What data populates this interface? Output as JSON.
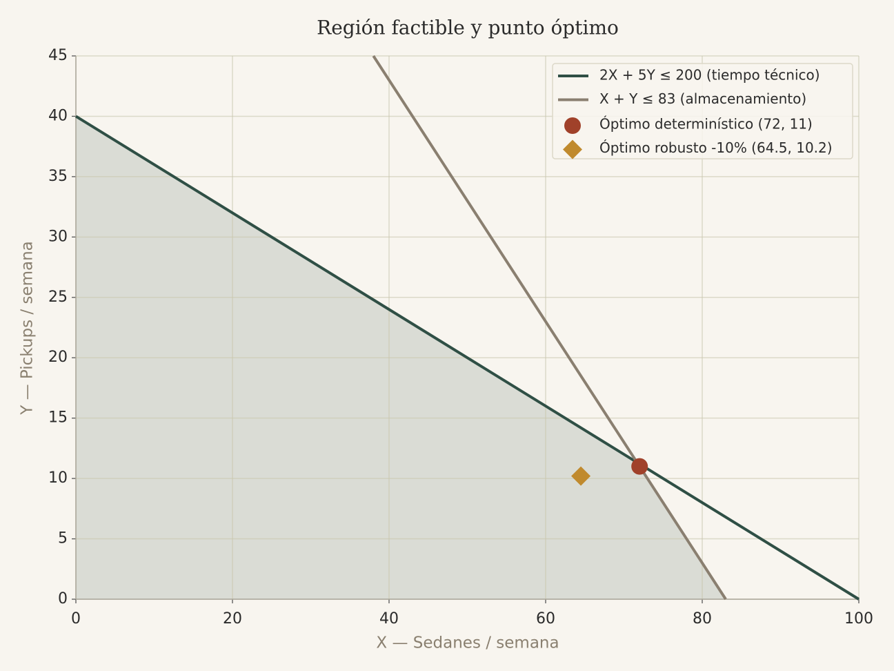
{
  "chart_data": {
    "type": "line",
    "title": "Región factible y punto óptimo",
    "xlabel": "X — Sedanes / semana",
    "ylabel": "Y — Pickups / semana",
    "xlim": [
      0,
      100
    ],
    "ylim": [
      0,
      45
    ],
    "xticks": [
      0,
      20,
      40,
      60,
      80,
      100
    ],
    "yticks": [
      0,
      5,
      10,
      15,
      20,
      25,
      30,
      35,
      40,
      45
    ],
    "grid": true,
    "legend": "upper right",
    "region": {
      "x": [
        0,
        0,
        71.67,
        83
      ],
      "y": [
        0,
        40,
        11.33,
        0
      ],
      "color": "#dadcd5"
    },
    "series": [
      {
        "name": "2X + 5Y ≤ 200 (tiempo técnico)",
        "color": "#2f4f45",
        "marker": "none",
        "x": [
          0,
          100
        ],
        "values": [
          40,
          0
        ]
      },
      {
        "name": "X + Y ≤ 83 (almacenamiento)",
        "color": "#8a7f70",
        "marker": "none",
        "x": [
          38,
          83
        ],
        "values": [
          45,
          0
        ]
      },
      {
        "name": "Óptimo determinístico (72, 11)",
        "color": "#a0412a",
        "marker": "circle",
        "x": [
          72
        ],
        "values": [
          11
        ]
      },
      {
        "name": "Óptimo robusto -10% (64.5, 10.2)",
        "color": "#c08a2e",
        "marker": "diamond",
        "x": [
          64.5
        ],
        "values": [
          10.2
        ]
      }
    ]
  }
}
